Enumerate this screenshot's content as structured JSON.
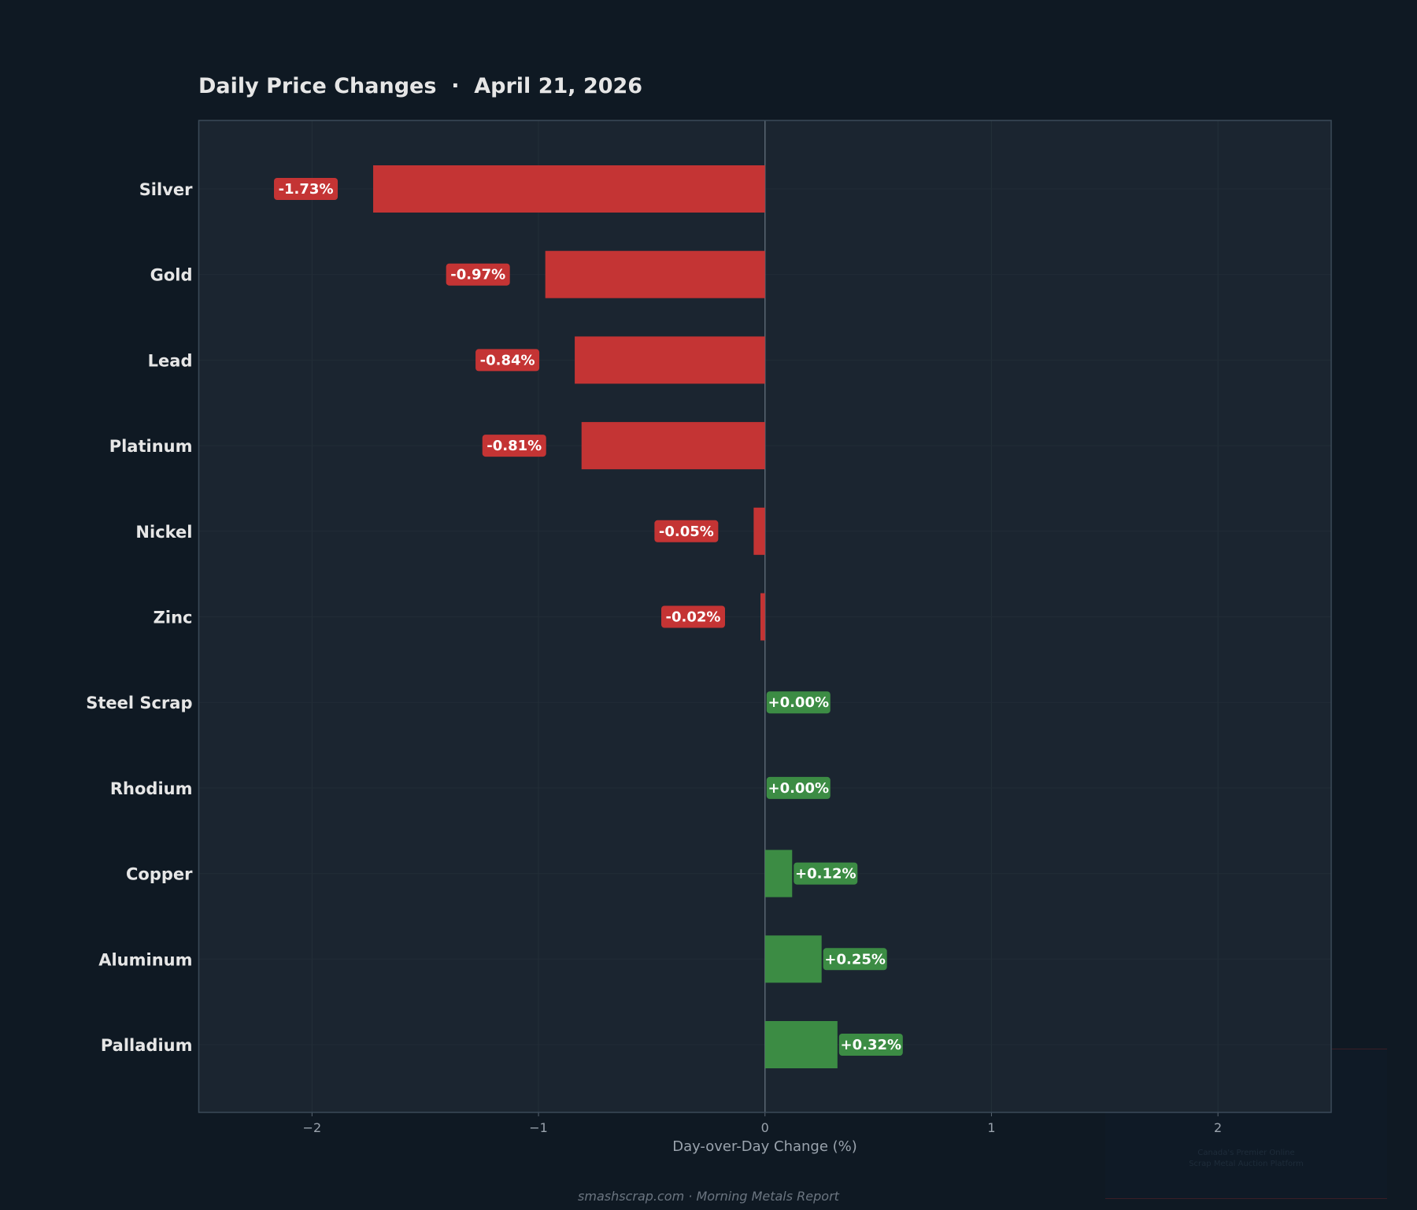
{
  "chart_data": {
    "type": "bar",
    "orientation": "horizontal",
    "title": "Daily Price Changes  ·  April 21, 2026",
    "xlabel": "Day-over-Day Change (%)",
    "ylabel": "",
    "xlim": [
      -2.5,
      2.5
    ],
    "xticks": [
      -2,
      -1,
      0,
      1,
      2
    ],
    "xtick_labels": [
      "−2",
      "−1",
      "0",
      "1",
      "2"
    ],
    "grid": true,
    "categories": [
      "Silver",
      "Gold",
      "Lead",
      "Platinum",
      "Nickel",
      "Zinc",
      "Steel Scrap",
      "Rhodium",
      "Copper",
      "Aluminum",
      "Palladium"
    ],
    "values": [
      -1.73,
      -0.97,
      -0.84,
      -0.81,
      -0.05,
      -0.02,
      0.0,
      0.0,
      0.12,
      0.25,
      0.32
    ],
    "data_labels": [
      "-1.73%",
      "-0.97%",
      "-0.84%",
      "-0.81%",
      "-0.05%",
      "-0.02%",
      "+0.00%",
      "+0.00%",
      "+0.12%",
      "+0.25%",
      "+0.32%"
    ],
    "colors": {
      "negative": "#c43434",
      "positive": "#3c8c44",
      "background": "#0f1923",
      "plot_background": "#1b2530",
      "frame": "#3b4a58"
    }
  },
  "footer": "smashscrap.com  ·  Morning Metals Report",
  "watermark": {
    "line1": "Canada's Premier Online",
    "line2": "Scrap Metal Auction Platform"
  }
}
